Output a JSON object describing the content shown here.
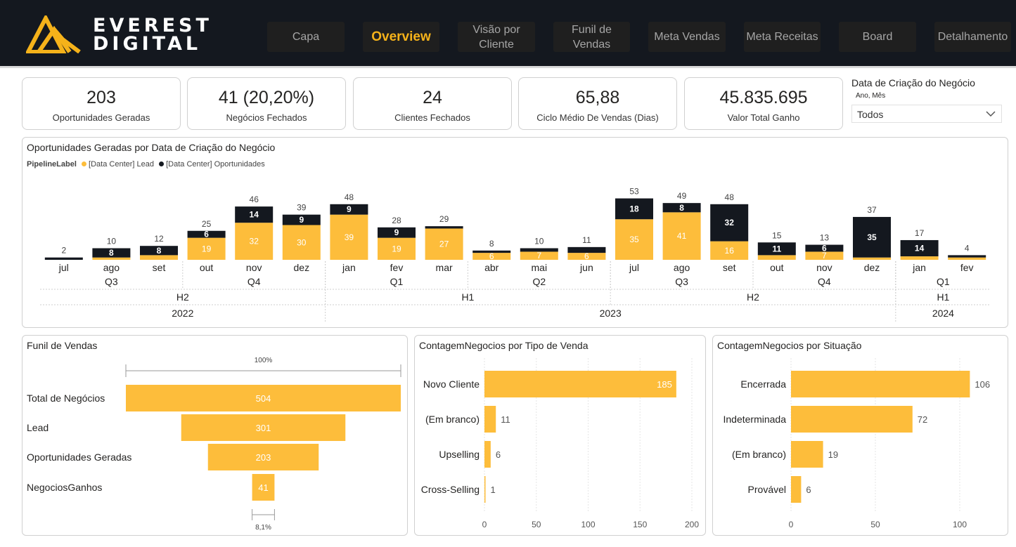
{
  "brand": {
    "line1": "EVEREST",
    "line2": "DIGITAL"
  },
  "nav": [
    {
      "label": "Capa",
      "active": false
    },
    {
      "label": "Overview",
      "active": true
    },
    {
      "label": "Visão por Cliente",
      "active": false
    },
    {
      "label": "Funil de Vendas",
      "active": false
    },
    {
      "label": "Meta Vendas",
      "active": false
    },
    {
      "label": "Meta Receitas",
      "active": false
    },
    {
      "label": "Board",
      "active": false
    },
    {
      "label": "Detalhamento",
      "active": false
    }
  ],
  "kpis": [
    {
      "value": "203",
      "label": "Oportunidades Geradas"
    },
    {
      "value": "41 (20,20%)",
      "label": "Negócios Fechados"
    },
    {
      "value": "24",
      "label": "Clientes Fechados"
    },
    {
      "value": "65,88",
      "label": "Ciclo Médio De Vendas (Dias)"
    },
    {
      "value": "45.835.695",
      "label": "Valor Total Ganho"
    }
  ],
  "slicer": {
    "title": "Data de Criação do Negócio",
    "subtitle": "Ano, Mês",
    "value": "Todos"
  },
  "colors": {
    "lead": "#fdbd3b",
    "oportunidades": "#14181f",
    "accent": "#f5b21a",
    "header_bg": "#14181f"
  },
  "chart_data": [
    {
      "type": "bar",
      "stacked": true,
      "title": "Oportunidades Geradas por Data de Criação do Negócio",
      "legend_title": "PipelineLabel",
      "legend_position": "top-left",
      "categories": [
        "jul",
        "ago",
        "set",
        "out",
        "nov",
        "dez",
        "jan",
        "fev",
        "mar",
        "abr",
        "mai",
        "jun",
        "jul",
        "ago",
        "set",
        "out",
        "nov",
        "dez",
        "jan",
        "fev"
      ],
      "quarters": [
        "Q3",
        "Q3",
        "Q3",
        "Q4",
        "Q4",
        "Q4",
        "Q1",
        "Q1",
        "Q1",
        "Q2",
        "Q2",
        "Q2",
        "Q3",
        "Q3",
        "Q3",
        "Q4",
        "Q4",
        "Q4",
        "Q1",
        "Q1"
      ],
      "halves": [
        "H2",
        "H2",
        "H2",
        "H2",
        "H2",
        "H2",
        "H1",
        "H1",
        "H1",
        "H1",
        "H1",
        "H1",
        "H2",
        "H2",
        "H2",
        "H2",
        "H2",
        "H2",
        "H1",
        "H1"
      ],
      "years": [
        "2022",
        "2022",
        "2022",
        "2022",
        "2022",
        "2022",
        "2023",
        "2023",
        "2023",
        "2023",
        "2023",
        "2023",
        "2023",
        "2023",
        "2023",
        "2023",
        "2023",
        "2023",
        "2024",
        "2024"
      ],
      "series": [
        {
          "name": "[Data Center] Lead",
          "values": [
            0,
            2,
            4,
            19,
            32,
            30,
            39,
            19,
            27,
            6,
            7,
            6,
            35,
            41,
            16,
            4,
            7,
            2,
            3,
            2
          ]
        },
        {
          "name": "[Data Center] Oportunidades",
          "values": [
            2,
            8,
            8,
            6,
            14,
            9,
            9,
            9,
            2,
            2,
            3,
            5,
            18,
            8,
            32,
            11,
            6,
            35,
            14,
            2
          ]
        }
      ],
      "totals": [
        2,
        10,
        12,
        25,
        46,
        39,
        48,
        28,
        29,
        8,
        10,
        11,
        53,
        49,
        48,
        15,
        13,
        37,
        17,
        4
      ],
      "inner_labels_lead": [
        "",
        "",
        "",
        "19",
        "32",
        "30",
        "39",
        "19",
        "27",
        "6",
        "7",
        "6",
        "35",
        "41",
        "16",
        "",
        "7",
        "",
        "",
        ""
      ],
      "inner_labels_oport": [
        "",
        "8",
        "8",
        "6",
        "14",
        "9",
        "9",
        "9",
        "",
        "",
        "",
        "",
        "18",
        "8",
        "32",
        "11",
        "6",
        "35",
        "14",
        ""
      ],
      "ylim": [
        0,
        56
      ],
      "grid": false
    },
    {
      "type": "funnel",
      "title": "Funil de Vendas",
      "categories": [
        "Total de Negócios",
        "Lead",
        "Oportunidades Geradas",
        "NegociosGanhos"
      ],
      "values": [
        504,
        301,
        203,
        41
      ],
      "top_label": "100%",
      "bottom_label": "8,1%"
    },
    {
      "type": "bar",
      "orientation": "horizontal",
      "title": "ContagemNegocios por Tipo de Venda",
      "categories": [
        "Novo Cliente",
        "(Em branco)",
        "Upselling",
        "Cross-Selling"
      ],
      "values": [
        185,
        11,
        6,
        1
      ],
      "xlim": [
        0,
        200
      ],
      "ticks": [
        0,
        50,
        100,
        150,
        200
      ],
      "grid": true
    },
    {
      "type": "bar",
      "orientation": "horizontal",
      "title": "ContagemNegocios por Situação",
      "categories": [
        "Encerrada",
        "Indeterminada",
        "(Em branco)",
        "Provável"
      ],
      "values": [
        106,
        72,
        19,
        6
      ],
      "xlim": [
        0,
        115
      ],
      "ticks": [
        0,
        50,
        100
      ],
      "grid": true
    }
  ]
}
